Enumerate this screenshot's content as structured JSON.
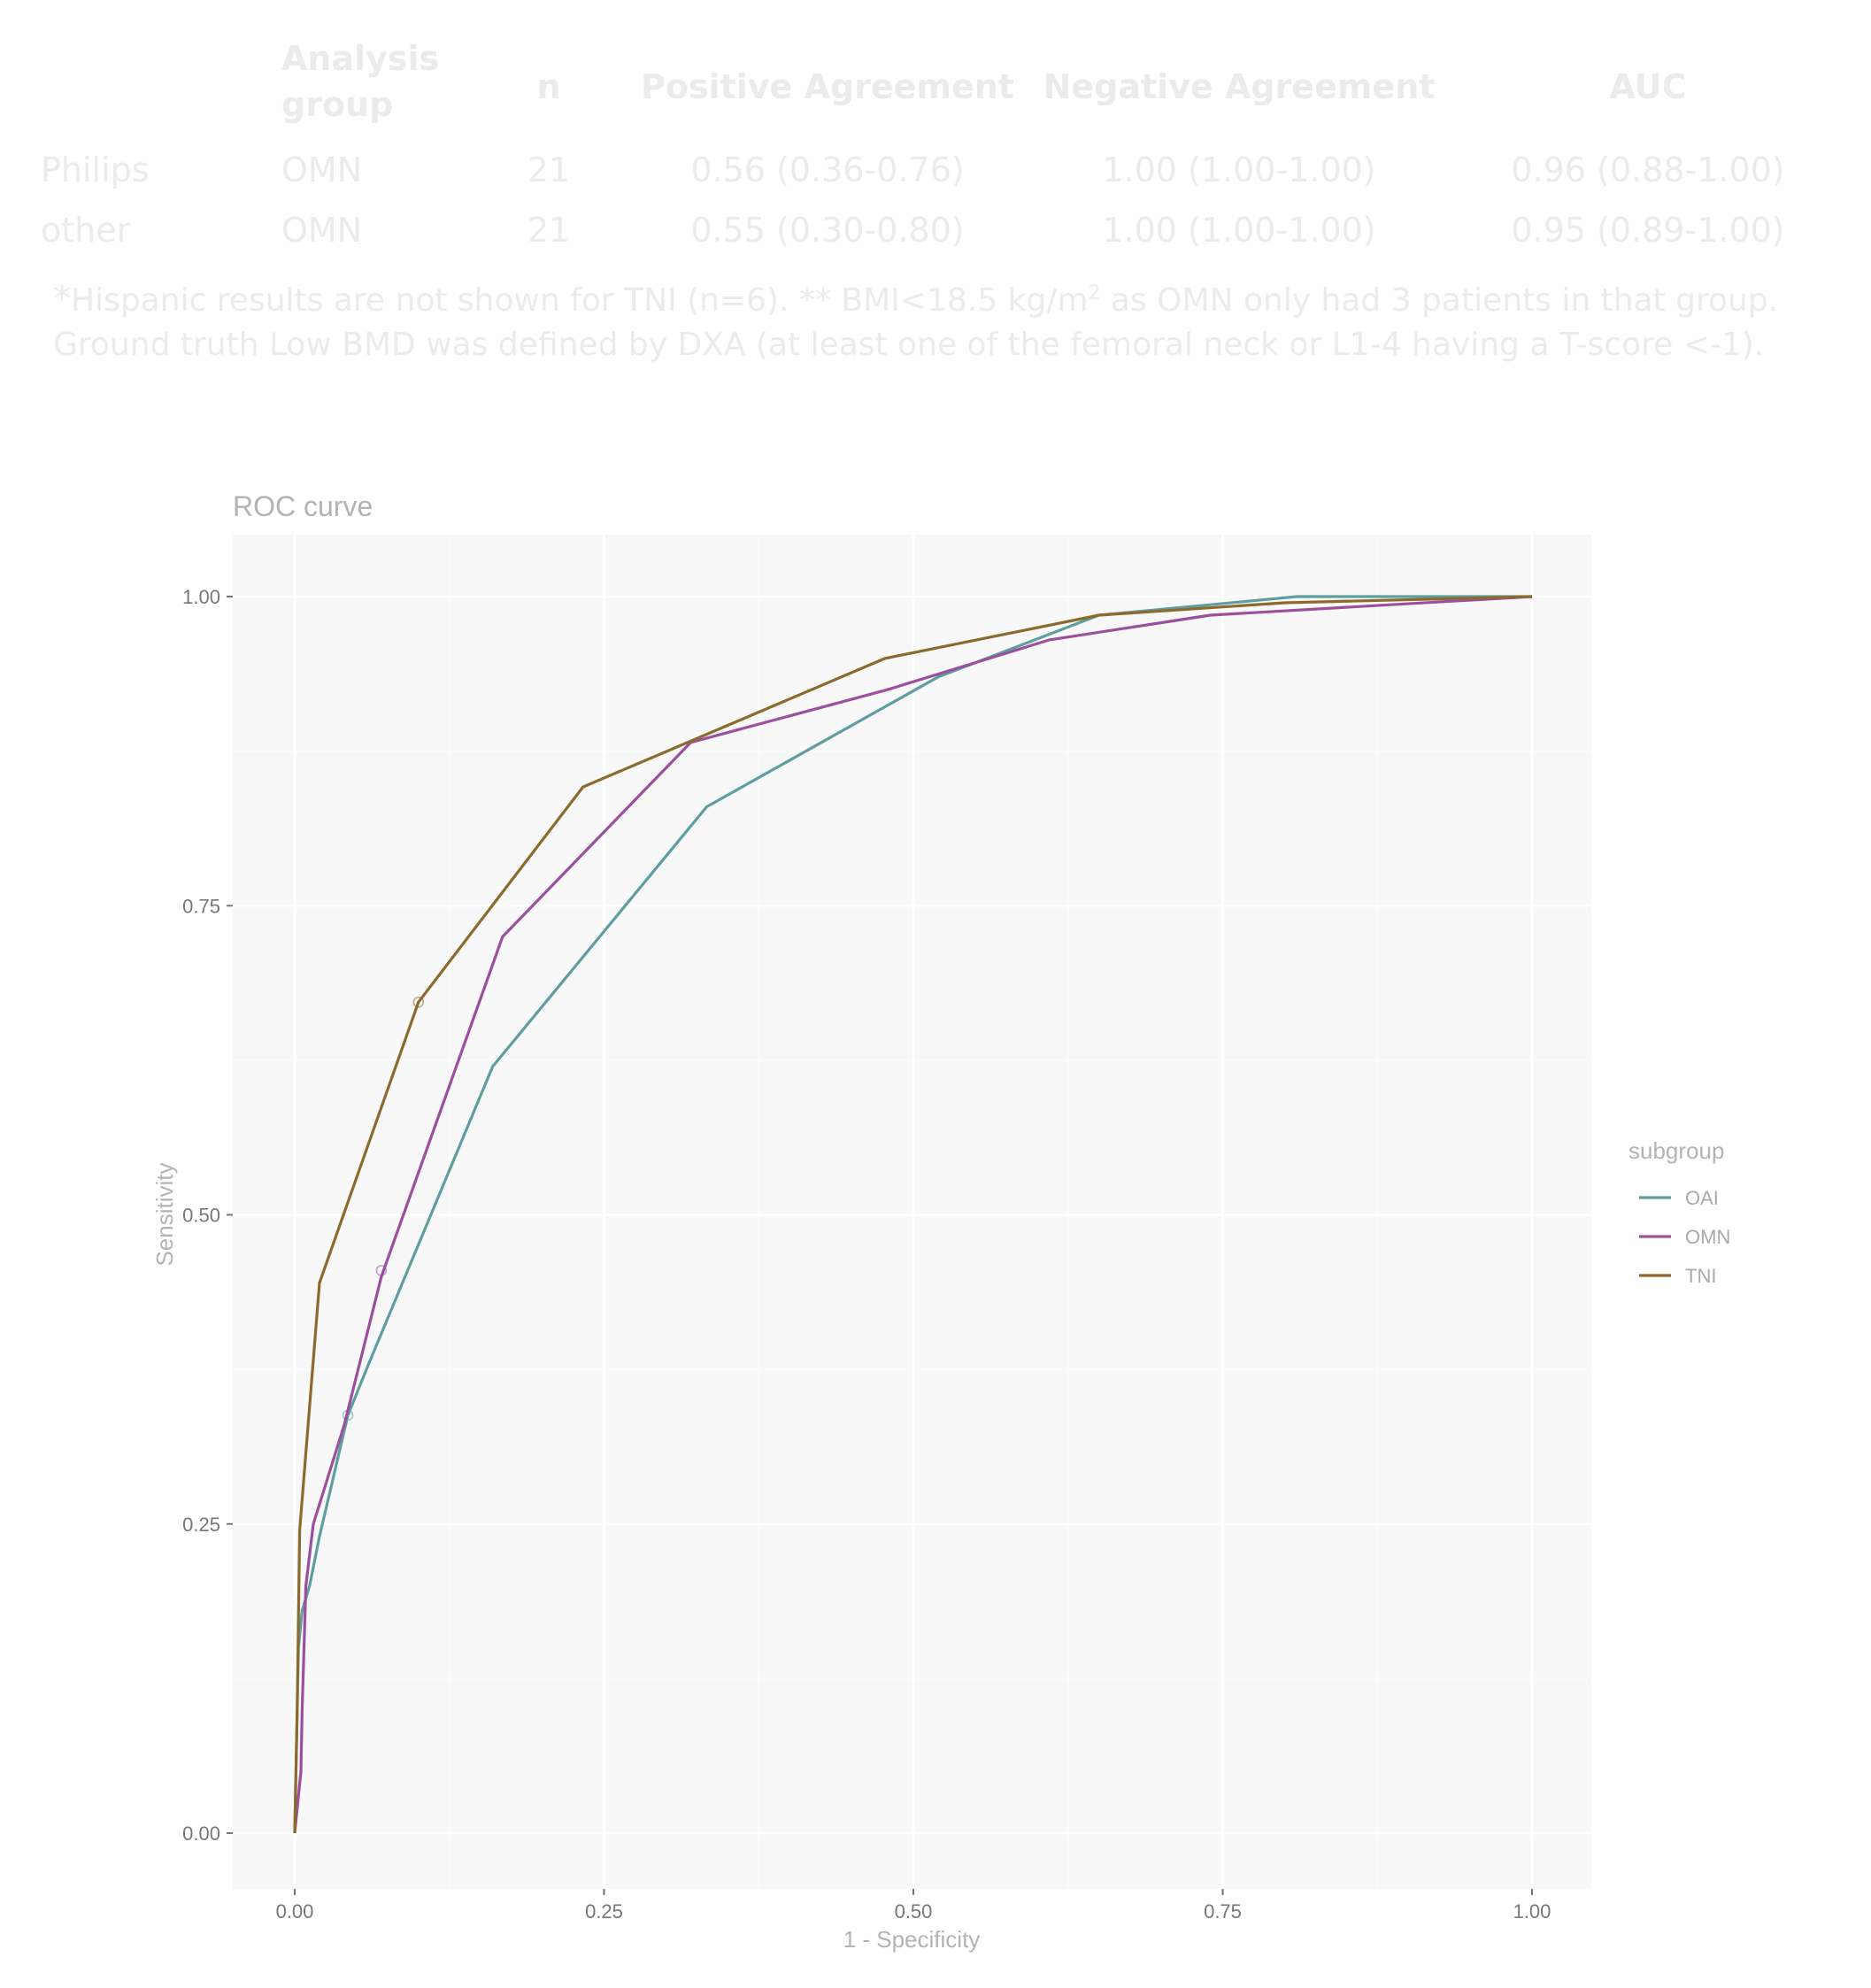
{
  "table": {
    "headers": {
      "group_line1": "Analysis",
      "group_line2": "group",
      "n": "n",
      "positive": "Positive Agreement",
      "negative": "Negative Agreement",
      "auc": "AUC"
    },
    "rows": [
      {
        "label": "Philips",
        "group": "OMN",
        "n": "21",
        "positive": "0.56 (0.36-0.76)",
        "negative": "1.00 (1.00-1.00)",
        "auc": "0.96 (0.88-1.00)"
      },
      {
        "label": "other",
        "group": "OMN",
        "n": "21",
        "positive": "0.55 (0.30-0.80)",
        "negative": "1.00 (1.00-1.00)",
        "auc": "0.95 (0.89-1.00)"
      }
    ],
    "footnote_star": "*",
    "footnote_line1_a": "Hispanic results are not shown for TNI (n=6). ** BMI<18.5 kg/m",
    "footnote_sup": "2",
    "footnote_line1_b": " as OMN only had 3 patients in that group.",
    "footnote_line2": "Ground truth Low BMD was defined by DXA (at least one of the femoral neck or L1-4 having a T-score <-1)."
  },
  "chart_data": {
    "type": "line",
    "title": "ROC curve",
    "xlabel": "1 - Specificity",
    "ylabel": "Sensitivity",
    "xlim": [
      0,
      1
    ],
    "ylim": [
      0,
      1
    ],
    "xticks": [
      "0.00",
      "0.25",
      "0.50",
      "0.75",
      "1.00"
    ],
    "yticks": [
      "0.00",
      "0.25",
      "0.50",
      "0.75",
      "1.00"
    ],
    "grid": true,
    "legend_title": "subgroup",
    "legend_position": "right",
    "series": [
      {
        "name": "OAI",
        "color": "#5f9ea0",
        "x": [
          0,
          0.003,
          0.006,
          0.012,
          0.02,
          0.043,
          0.06,
          0.16,
          0.333,
          0.52,
          0.65,
          0.81,
          1.0
        ],
        "y": [
          0,
          0.15,
          0.18,
          0.2,
          0.24,
          0.338,
          0.38,
          0.62,
          0.83,
          0.935,
          0.985,
          1.0,
          1.0
        ],
        "marker": {
          "x": 0.043,
          "y": 0.338
        }
      },
      {
        "name": "OMN",
        "color": "#9b4f9e",
        "x": [
          0,
          0.005,
          0.006,
          0.009,
          0.015,
          0.04,
          0.07,
          0.168,
          0.32,
          0.48,
          0.61,
          0.74,
          1.0
        ],
        "y": [
          0,
          0.05,
          0.1,
          0.2,
          0.25,
          0.33,
          0.45,
          0.725,
          0.882,
          0.925,
          0.965,
          0.985,
          1.0
        ],
        "marker": {
          "x": 0.07,
          "y": 0.455
        }
      },
      {
        "name": "TNI",
        "color": "#8b6a2e",
        "x": [
          0,
          0.002,
          0.004,
          0.02,
          0.1,
          0.233,
          0.477,
          0.65,
          0.8,
          1.0
        ],
        "y": [
          0,
          0.1,
          0.245,
          0.445,
          0.672,
          0.846,
          0.95,
          0.985,
          0.995,
          1.0
        ],
        "marker": {
          "x": 0.1,
          "y": 0.672
        }
      }
    ]
  }
}
